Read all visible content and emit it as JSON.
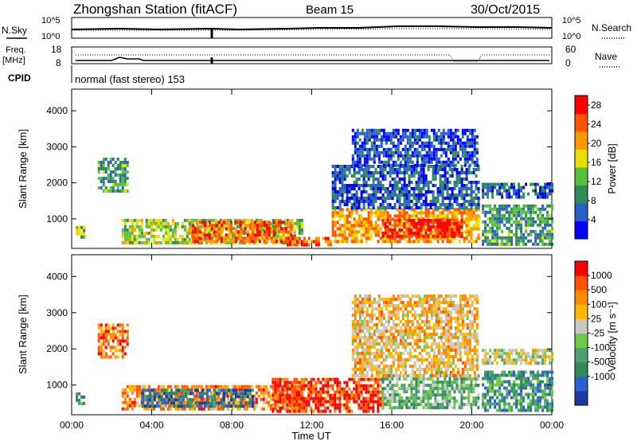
{
  "header": {
    "title": "Zhongshan Station (fitACF)",
    "beam": "Beam 15",
    "date": "30/Oct/2015"
  },
  "strips": {
    "nsky_label": "N.Sky",
    "nsky_ticks": [
      "10^5",
      "10^0"
    ],
    "nsearch_label": "N.Search",
    "nsearch_ticks": [
      "10^5",
      "10^0"
    ],
    "freq_label_1": "Freq.",
    "freq_label_2": "[MHz]",
    "freq_ticks": [
      "18",
      "8"
    ],
    "nave_label": "Nave",
    "nave_ticks": [
      "60",
      "0"
    ],
    "cpid_label": "CPID",
    "cpid_value": "normal (fast stereo) 153"
  },
  "chart_data": [
    {
      "type": "heatmap",
      "title": "",
      "xlabel": "Time UT",
      "ylabel": "Slant Range [km]",
      "x_ticks": [
        "00:00",
        "04:00",
        "08:00",
        "12:00",
        "16:00",
        "20:00",
        "00:00"
      ],
      "xlim_hours": [
        0,
        24
      ],
      "y_ticks": [
        "1000",
        "2000",
        "3000",
        "4000"
      ],
      "ylim_km": [
        180,
        4600
      ],
      "colorbar": {
        "label": "Power [dB]",
        "ticks": [
          "4",
          "8",
          "12",
          "16",
          "20",
          "24",
          "28"
        ],
        "range": [
          0,
          30
        ],
        "colors": [
          "#0000ff",
          "#2a5fc8",
          "#2e8c5a",
          "#58c040",
          "#e8e000",
          "#ff9900",
          "#ff5500",
          "#ff0000"
        ]
      },
      "regions": [
        {
          "t0": 0.2,
          "t1": 0.6,
          "r0": 450,
          "r1": 800,
          "level": 0.45
        },
        {
          "t0": 2.5,
          "t1": 11.5,
          "r0": 350,
          "r1": 1000,
          "level": 0.5
        },
        {
          "t0": 6.0,
          "t1": 11.0,
          "r0": 400,
          "r1": 950,
          "level": 0.8
        },
        {
          "t0": 10.5,
          "t1": 13.0,
          "r0": 250,
          "r1": 500,
          "level": 0.8
        },
        {
          "t0": 13.0,
          "t1": 20.3,
          "r0": 400,
          "r1": 1300,
          "level": 0.7
        },
        {
          "t0": 13.0,
          "t1": 20.3,
          "r0": 1300,
          "r1": 2500,
          "level": 0.2
        },
        {
          "t0": 14.0,
          "t1": 20.3,
          "r0": 2500,
          "r1": 3500,
          "level": 0.15
        },
        {
          "t0": 15.5,
          "t1": 19.5,
          "r0": 500,
          "r1": 1000,
          "level": 0.95
        },
        {
          "t0": 20.5,
          "t1": 24.0,
          "r0": 1600,
          "r1": 2000,
          "level": 0.2
        },
        {
          "t0": 20.5,
          "t1": 24.0,
          "r0": 300,
          "r1": 1400,
          "level": 0.35
        },
        {
          "t0": 1.3,
          "t1": 2.8,
          "r0": 1800,
          "r1": 2700,
          "level": 0.35
        }
      ]
    },
    {
      "type": "heatmap",
      "title": "",
      "xlabel": "Time UT",
      "ylabel": "Slant Range [km]",
      "x_ticks": [
        "00:00",
        "04:00",
        "08:00",
        "12:00",
        "16:00",
        "20:00",
        "00:00"
      ],
      "xlim_hours": [
        0,
        24
      ],
      "y_ticks": [
        "1000",
        "2000",
        "3000",
        "4000"
      ],
      "ylim_km": [
        180,
        4600
      ],
      "colorbar": {
        "label": "Velocity [m s⁻¹]",
        "ticks": [
          "1000",
          "500",
          "100",
          "25",
          "-25",
          "-100",
          "-500",
          "-1000"
        ],
        "colors": [
          "#1d3a9e",
          "#2c5fcf",
          "#2e8c5a",
          "#4fa070",
          "#6ec84a",
          "#c8c8c8",
          "#ffb800",
          "#ff8a00",
          "#ff5500",
          "#ff0000"
        ]
      },
      "regions": [
        {
          "t0": 0.2,
          "t1": 0.6,
          "r0": 450,
          "r1": 800,
          "level": 0.3
        },
        {
          "t0": 2.5,
          "t1": 11.5,
          "r0": 350,
          "r1": 1000,
          "level": 0.75
        },
        {
          "t0": 3.5,
          "t1": 9.0,
          "r0": 400,
          "r1": 900,
          "level": 0.2
        },
        {
          "t0": 10.0,
          "t1": 15.5,
          "r0": 300,
          "r1": 1200,
          "level": 0.9
        },
        {
          "t0": 15.5,
          "t1": 20.3,
          "r0": 400,
          "r1": 1300,
          "level": 0.4
        },
        {
          "t0": 14.0,
          "t1": 20.3,
          "r0": 1300,
          "r1": 3500,
          "level": 0.65
        },
        {
          "t0": 20.5,
          "t1": 24.0,
          "r0": 1600,
          "r1": 2000,
          "level": 0.55
        },
        {
          "t0": 20.5,
          "t1": 24.0,
          "r0": 300,
          "r1": 1400,
          "level": 0.3
        },
        {
          "t0": 1.3,
          "t1": 2.8,
          "r0": 1800,
          "r1": 2700,
          "level": 0.8
        }
      ]
    }
  ]
}
